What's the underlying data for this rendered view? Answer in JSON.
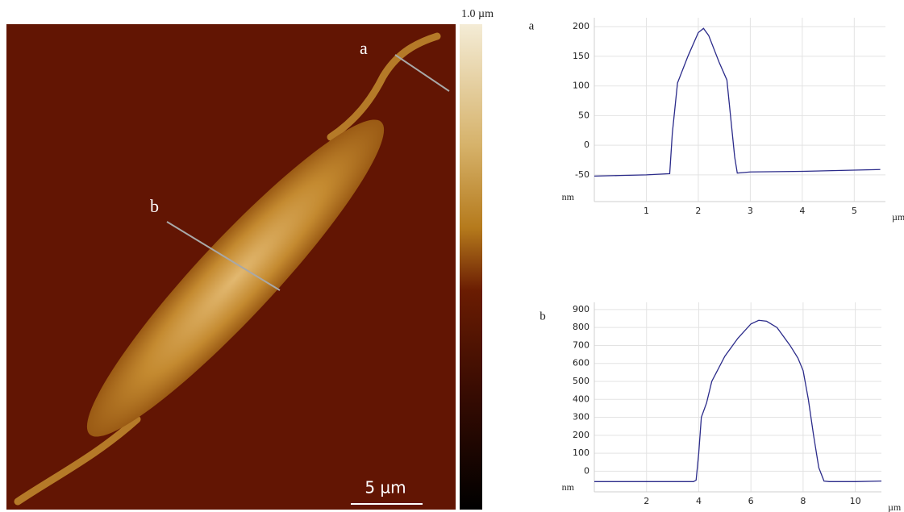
{
  "image": {
    "colorbar_label": "1.0 µm",
    "scale_bar": "5 µm",
    "profile_labels": [
      "a",
      "b"
    ]
  },
  "chart_data": [
    {
      "type": "line",
      "title": "a",
      "ylabel": "nm",
      "xlabel": "µm",
      "color": "#2b2b8a",
      "grid": true,
      "x": [
        0,
        0.5,
        1,
        1.45,
        1.5,
        1.6,
        1.8,
        2.0,
        2.1,
        2.2,
        2.4,
        2.55,
        2.7,
        2.75,
        3,
        4,
        5,
        5.5
      ],
      "values": [
        -52,
        -51,
        -50,
        -48,
        20,
        105,
        150,
        190,
        197,
        185,
        140,
        110,
        -20,
        -47,
        -45,
        -44,
        -42,
        -41
      ],
      "xlim": [
        0,
        5.6
      ],
      "ylim": [
        -95,
        215
      ],
      "xticks": [
        1,
        2,
        3,
        4,
        5
      ],
      "yticks": [
        -50,
        0,
        50,
        100,
        150,
        200
      ]
    },
    {
      "type": "line",
      "title": "b",
      "ylabel": "nm",
      "xlabel": "µm",
      "color": "#2b2b8a",
      "grid": true,
      "x": [
        0,
        2,
        3.8,
        3.9,
        4.0,
        4.1,
        4.3,
        4.5,
        5,
        5.5,
        6,
        6.3,
        6.6,
        7,
        7.5,
        7.8,
        8.0,
        8.2,
        8.4,
        8.6,
        8.8,
        9,
        10,
        11
      ],
      "values": [
        -58,
        -58,
        -58,
        -50,
        100,
        300,
        380,
        500,
        640,
        740,
        820,
        840,
        835,
        800,
        700,
        630,
        560,
        400,
        200,
        20,
        -55,
        -58,
        -58,
        -55
      ],
      "xlim": [
        0,
        11
      ],
      "ylim": [
        -115,
        940
      ],
      "xticks": [
        2,
        4,
        6,
        8,
        10
      ],
      "yticks": [
        0,
        100,
        200,
        300,
        400,
        500,
        600,
        700,
        800,
        900
      ]
    }
  ]
}
